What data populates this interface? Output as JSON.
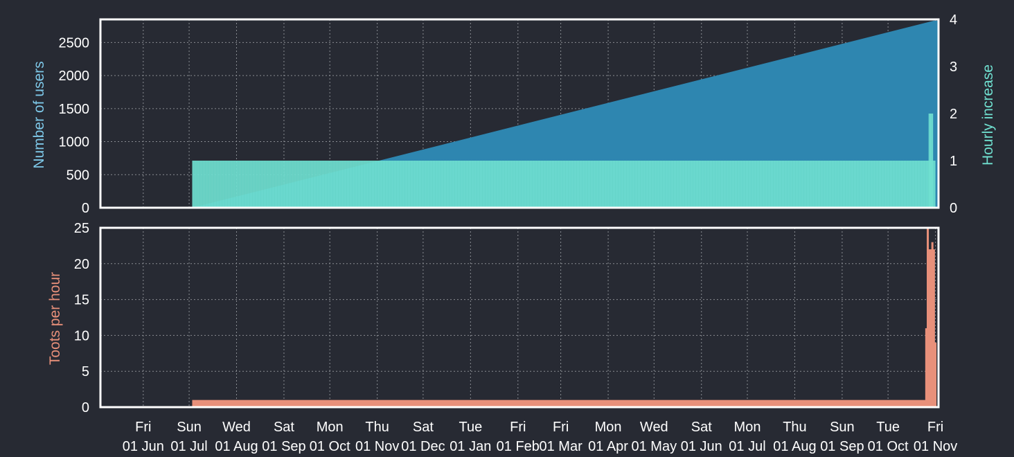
{
  "colors": {
    "background": "#272a33",
    "users_area": "#2e86b0",
    "hourly_increase": "#70e0d0",
    "toots": "#e8907a",
    "text": "#ffffff",
    "users_label": "#7ec8e8",
    "hourly_label": "#70e0d0",
    "toots_label": "#e8907a"
  },
  "chart_data": [
    {
      "type": "area",
      "panel": "top",
      "ylabel": "Number of users",
      "ylim": [
        0,
        2850
      ],
      "yticks": [
        0,
        500,
        1000,
        1500,
        2000,
        2500
      ],
      "grid": true,
      "x": [
        "2018-07-03",
        "2019-10-31"
      ],
      "series": [
        {
          "values": [
            0,
            2830
          ]
        }
      ]
    },
    {
      "type": "bar",
      "panel": "top",
      "ylabel_right": "Hourly increase",
      "ylim": [
        0,
        4
      ],
      "yticks": [
        0,
        1,
        2,
        3,
        4
      ],
      "x_range": [
        "2018-07-03",
        "2019-11-01"
      ],
      "baseline_value": 1,
      "spikes": [
        {
          "x": "2019-10-28",
          "value": 2
        },
        {
          "x": "2019-10-29",
          "value": 2
        },
        {
          "x": "2019-10-30",
          "value": 2
        }
      ]
    },
    {
      "type": "bar",
      "panel": "bottom",
      "ylabel": "Toots per hour",
      "ylim": [
        0,
        25
      ],
      "yticks": [
        0,
        5,
        10,
        15,
        20,
        25
      ],
      "grid": true,
      "x_range": [
        "2018-07-03",
        "2019-11-01"
      ],
      "baseline_value": 1,
      "spikes": [
        {
          "x": "2019-10-26",
          "value": 11
        },
        {
          "x": "2019-10-27",
          "value": 25
        },
        {
          "x": "2019-10-27",
          "value": 22
        },
        {
          "x": "2019-10-28",
          "value": 11
        },
        {
          "x": "2019-10-28",
          "value": 22
        },
        {
          "x": "2019-10-29",
          "value": 18
        },
        {
          "x": "2019-10-29",
          "value": 22
        },
        {
          "x": "2019-10-30",
          "value": 23
        },
        {
          "x": "2019-10-30",
          "value": 16
        },
        {
          "x": "2019-10-31",
          "value": 22
        },
        {
          "x": "2019-11-01",
          "value": 9
        }
      ]
    }
  ],
  "x_axis": {
    "range": [
      "2018-05-04",
      "2019-11-03"
    ],
    "ticks": [
      {
        "date": "2018-06-01",
        "day": "Fri",
        "label": "01 Jun"
      },
      {
        "date": "2018-07-01",
        "day": "Sun",
        "label": "01 Jul"
      },
      {
        "date": "2018-08-01",
        "day": "Wed",
        "label": "01 Aug"
      },
      {
        "date": "2018-09-01",
        "day": "Sat",
        "label": "01 Sep"
      },
      {
        "date": "2018-10-01",
        "day": "Mon",
        "label": "01 Oct"
      },
      {
        "date": "2018-11-01",
        "day": "Thu",
        "label": "01 Nov"
      },
      {
        "date": "2018-12-01",
        "day": "Sat",
        "label": "01 Dec"
      },
      {
        "date": "2019-01-01",
        "day": "Tue",
        "label": "01 Jan"
      },
      {
        "date": "2019-02-01",
        "day": "Fri",
        "label": "01 Feb"
      },
      {
        "date": "2019-03-01",
        "day": "Fri",
        "label": "01 Mar"
      },
      {
        "date": "2019-04-01",
        "day": "Mon",
        "label": "01 Apr"
      },
      {
        "date": "2019-05-01",
        "day": "Wed",
        "label": "01 May"
      },
      {
        "date": "2019-06-01",
        "day": "Sat",
        "label": "01 Jun"
      },
      {
        "date": "2019-07-01",
        "day": "Mon",
        "label": "01 Jul"
      },
      {
        "date": "2019-08-01",
        "day": "Thu",
        "label": "01 Aug"
      },
      {
        "date": "2019-09-01",
        "day": "Sun",
        "label": "01 Sep"
      },
      {
        "date": "2019-10-01",
        "day": "Tue",
        "label": "01 Oct"
      },
      {
        "date": "2019-11-01",
        "day": "Fri",
        "label": "01 Nov"
      }
    ]
  }
}
